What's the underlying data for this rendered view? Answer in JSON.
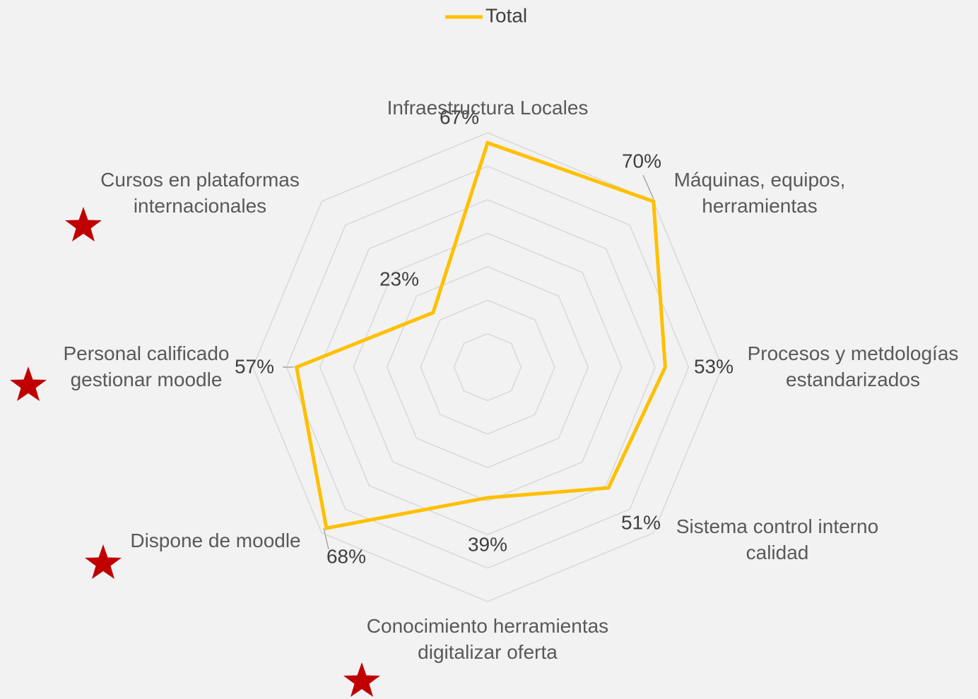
{
  "chart_data": {
    "type": "radar",
    "categories": [
      "Infraestructura Locales",
      "Máquinas, equipos, herramientas",
      "Procesos y metdologías estandarizados",
      "Sistema control interno calidad",
      "Conocimiento herramientas digitalizar oferta",
      "Dispone de moodle",
      "Personal calificado gestionar moodle",
      "Cursos en plataformas internacionales"
    ],
    "series": [
      {
        "name": "Total",
        "color": "#ffc000",
        "values": [
          67,
          70,
          53,
          51,
          39,
          68,
          57,
          23
        ],
        "value_labels": [
          "67%",
          "70%",
          "53%",
          "51%",
          "39%",
          "68%",
          "57%",
          "23%"
        ]
      }
    ],
    "ylim": [
      0,
      70
    ],
    "yticks": [
      0,
      10,
      20,
      30,
      40,
      50,
      60,
      70
    ],
    "grid": true,
    "legend": "top"
  }
}
